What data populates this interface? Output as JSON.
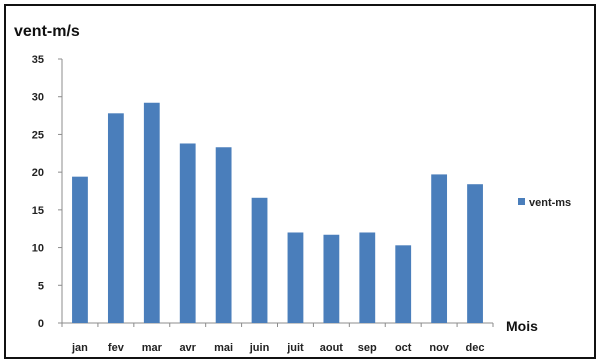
{
  "chart_data": {
    "type": "bar",
    "title": "vent-m/s",
    "xlabel": "Mois",
    "ylabel": "",
    "categories": [
      "jan",
      "fev",
      "mar",
      "avr",
      "mai",
      "juin",
      "juit",
      "aout",
      "sep",
      "oct",
      "nov",
      "dec"
    ],
    "series": [
      {
        "name": "vent-ms",
        "values": [
          19.4,
          27.8,
          29.2,
          23.8,
          23.3,
          16.6,
          12.0,
          11.7,
          12.0,
          10.3,
          19.7,
          18.4
        ]
      }
    ],
    "ylim": [
      0,
      35
    ],
    "yticks": [
      0,
      5,
      10,
      15,
      20,
      25,
      30,
      35
    ],
    "grid": false,
    "legend_position": "right",
    "colors": {
      "bar": "#4a7ebb",
      "axis": "#8c8c8c",
      "frame": "#111111"
    }
  }
}
